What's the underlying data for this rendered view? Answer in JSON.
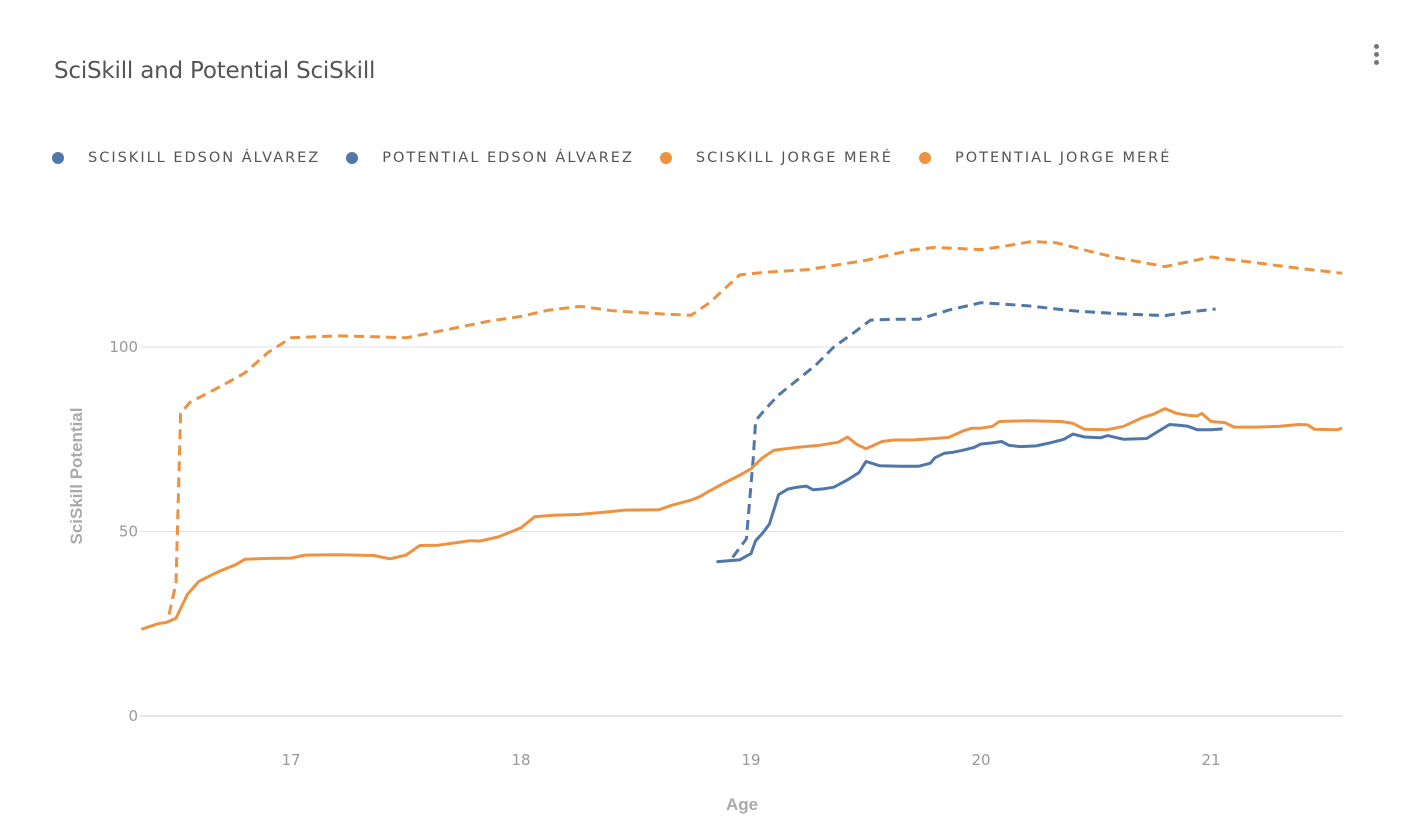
{
  "header": {
    "title": "SciSkill and Potential SciSkill"
  },
  "menu": {
    "icon": "more-vertical-icon"
  },
  "legend": [
    {
      "label": "SCISKILL EDSON ÁLVAREZ",
      "color": "#4f77a7"
    },
    {
      "label": "POTENTIAL EDSON ÁLVAREZ",
      "color": "#4f77a7"
    },
    {
      "label": "SCISKILL JORGE MERÉ",
      "color": "#ec9240"
    },
    {
      "label": "POTENTIAL JORGE MERÉ",
      "color": "#ec9240"
    }
  ],
  "chart_data": {
    "type": "line",
    "title": "SciSkill and Potential SciSkill",
    "xlabel": "Age",
    "ylabel": "SciSkill Potential",
    "xlim": [
      16.35,
      21.57
    ],
    "ylim": [
      0,
      135
    ],
    "xticks": [
      17,
      18,
      19,
      20,
      21
    ],
    "yticks": [
      0,
      50,
      100
    ],
    "grid": true,
    "legend_position": "top-left",
    "series": [
      {
        "name": "SciSkill Edson Álvarez",
        "color": "#4f77a7",
        "dash": false,
        "points": [
          [
            18.85,
            41.8
          ],
          [
            18.95,
            42.3
          ],
          [
            19.0,
            44
          ],
          [
            19.02,
            47.5
          ],
          [
            19.05,
            49.5
          ],
          [
            19.08,
            52
          ],
          [
            19.12,
            60
          ],
          [
            19.16,
            61.5
          ],
          [
            19.2,
            62
          ],
          [
            19.24,
            62.3
          ],
          [
            19.27,
            61.3
          ],
          [
            19.32,
            61.6
          ],
          [
            19.36,
            62
          ],
          [
            19.42,
            64
          ],
          [
            19.47,
            66
          ],
          [
            19.5,
            69
          ],
          [
            19.56,
            67.8
          ],
          [
            19.65,
            67.7
          ],
          [
            19.73,
            67.7
          ],
          [
            19.78,
            68.5
          ],
          [
            19.8,
            70
          ],
          [
            19.84,
            71.2
          ],
          [
            19.88,
            71.5
          ],
          [
            19.92,
            72
          ],
          [
            19.97,
            72.8
          ],
          [
            20.0,
            73.7
          ],
          [
            20.05,
            74
          ],
          [
            20.09,
            74.4
          ],
          [
            20.12,
            73.4
          ],
          [
            20.17,
            73
          ],
          [
            20.24,
            73.2
          ],
          [
            20.3,
            74
          ],
          [
            20.36,
            75
          ],
          [
            20.4,
            76.4
          ],
          [
            20.45,
            75.6
          ],
          [
            20.52,
            75.4
          ],
          [
            20.55,
            76
          ],
          [
            20.62,
            75
          ],
          [
            20.72,
            75.2
          ],
          [
            20.78,
            77.5
          ],
          [
            20.82,
            79
          ],
          [
            20.86,
            78.8
          ],
          [
            20.9,
            78.5
          ],
          [
            20.94,
            77.6
          ],
          [
            21.0,
            77.6
          ],
          [
            21.05,
            77.8
          ]
        ]
      },
      {
        "name": "Potential Edson Álvarez",
        "color": "#4f77a7",
        "dash": true,
        "points": [
          [
            18.92,
            43
          ],
          [
            18.98,
            48
          ],
          [
            19.01,
            70
          ],
          [
            19.02,
            80
          ],
          [
            19.06,
            83
          ],
          [
            19.12,
            87
          ],
          [
            19.2,
            91
          ],
          [
            19.28,
            95
          ],
          [
            19.36,
            100
          ],
          [
            19.45,
            104
          ],
          [
            19.52,
            107.3
          ],
          [
            19.62,
            107.5
          ],
          [
            19.73,
            107.5
          ],
          [
            19.86,
            110
          ],
          [
            20.0,
            112
          ],
          [
            20.2,
            111.2
          ],
          [
            20.4,
            109.8
          ],
          [
            20.6,
            109
          ],
          [
            20.8,
            108.5
          ],
          [
            20.92,
            109.6
          ],
          [
            21.02,
            110.3
          ]
        ]
      },
      {
        "name": "SciSkill Jorge Meré",
        "color": "#ec9240",
        "dash": false,
        "points": [
          [
            16.35,
            23.5
          ],
          [
            16.42,
            25
          ],
          [
            16.46,
            25.4
          ],
          [
            16.5,
            26.5
          ],
          [
            16.55,
            33
          ],
          [
            16.6,
            36.5
          ],
          [
            16.68,
            39
          ],
          [
            16.76,
            41
          ],
          [
            16.8,
            42.5
          ],
          [
            16.9,
            42.7
          ],
          [
            17.0,
            42.8
          ],
          [
            17.06,
            43.6
          ],
          [
            17.2,
            43.7
          ],
          [
            17.36,
            43.5
          ],
          [
            17.43,
            42.6
          ],
          [
            17.5,
            43.6
          ],
          [
            17.56,
            46.2
          ],
          [
            17.64,
            46.3
          ],
          [
            17.72,
            47
          ],
          [
            17.78,
            47.5
          ],
          [
            17.82,
            47.4
          ],
          [
            17.9,
            48.5
          ],
          [
            17.96,
            50
          ],
          [
            18.0,
            51
          ],
          [
            18.06,
            54
          ],
          [
            18.14,
            54.4
          ],
          [
            18.25,
            54.6
          ],
          [
            18.36,
            55.2
          ],
          [
            18.45,
            55.8
          ],
          [
            18.6,
            55.9
          ],
          [
            18.66,
            57.2
          ],
          [
            18.74,
            58.5
          ],
          [
            18.78,
            59.5
          ],
          [
            18.82,
            61
          ],
          [
            18.88,
            63
          ],
          [
            18.95,
            65.2
          ],
          [
            19.0,
            67
          ],
          [
            19.05,
            70
          ],
          [
            19.1,
            72
          ],
          [
            19.2,
            72.8
          ],
          [
            19.3,
            73.4
          ],
          [
            19.38,
            74.2
          ],
          [
            19.42,
            75.6
          ],
          [
            19.46,
            73.6
          ],
          [
            19.5,
            72.4
          ],
          [
            19.57,
            74.4
          ],
          [
            19.62,
            74.8
          ],
          [
            19.7,
            74.8
          ],
          [
            19.8,
            75.2
          ],
          [
            19.86,
            75.5
          ],
          [
            19.92,
            77.2
          ],
          [
            19.96,
            78
          ],
          [
            20.0,
            78
          ],
          [
            20.05,
            78.5
          ],
          [
            20.08,
            79.8
          ],
          [
            20.2,
            80
          ],
          [
            20.35,
            79.8
          ],
          [
            20.4,
            79.3
          ],
          [
            20.45,
            77.7
          ],
          [
            20.55,
            77.6
          ],
          [
            20.62,
            78.5
          ],
          [
            20.7,
            80.8
          ],
          [
            20.75,
            81.8
          ],
          [
            20.8,
            83.3
          ],
          [
            20.85,
            82
          ],
          [
            20.9,
            81.5
          ],
          [
            20.94,
            81.3
          ],
          [
            20.96,
            82
          ],
          [
            21.0,
            79.8
          ],
          [
            21.06,
            79.5
          ],
          [
            21.1,
            78.3
          ],
          [
            21.2,
            78.3
          ],
          [
            21.3,
            78.5
          ],
          [
            21.38,
            79
          ],
          [
            21.42,
            78.9
          ],
          [
            21.45,
            77.7
          ],
          [
            21.55,
            77.6
          ],
          [
            21.57,
            78
          ]
        ]
      },
      {
        "name": "Potential Jorge Meré",
        "color": "#ec9240",
        "dash": true,
        "points": [
          [
            16.47,
            27.5
          ],
          [
            16.5,
            36
          ],
          [
            16.52,
            82
          ],
          [
            16.56,
            85
          ],
          [
            16.7,
            89.5
          ],
          [
            16.8,
            93
          ],
          [
            16.9,
            98.5
          ],
          [
            17.0,
            102.5
          ],
          [
            17.2,
            103
          ],
          [
            17.36,
            102.8
          ],
          [
            17.5,
            102.5
          ],
          [
            17.7,
            105
          ],
          [
            17.86,
            107
          ],
          [
            18.0,
            108.3
          ],
          [
            18.12,
            110
          ],
          [
            18.26,
            111
          ],
          [
            18.4,
            109.8
          ],
          [
            18.6,
            109
          ],
          [
            18.74,
            108.6
          ],
          [
            18.82,
            112
          ],
          [
            18.95,
            119.5
          ],
          [
            19.05,
            120.2
          ],
          [
            19.25,
            121
          ],
          [
            19.5,
            123.5
          ],
          [
            19.7,
            126.3
          ],
          [
            19.8,
            127
          ],
          [
            20.0,
            126.4
          ],
          [
            20.1,
            127.3
          ],
          [
            20.22,
            128.6
          ],
          [
            20.33,
            128.2
          ],
          [
            20.5,
            125.5
          ],
          [
            20.6,
            124.1
          ],
          [
            20.8,
            121.8
          ],
          [
            21.0,
            124.4
          ],
          [
            21.2,
            122.8
          ],
          [
            21.4,
            121.2
          ],
          [
            21.57,
            120
          ]
        ]
      }
    ]
  }
}
